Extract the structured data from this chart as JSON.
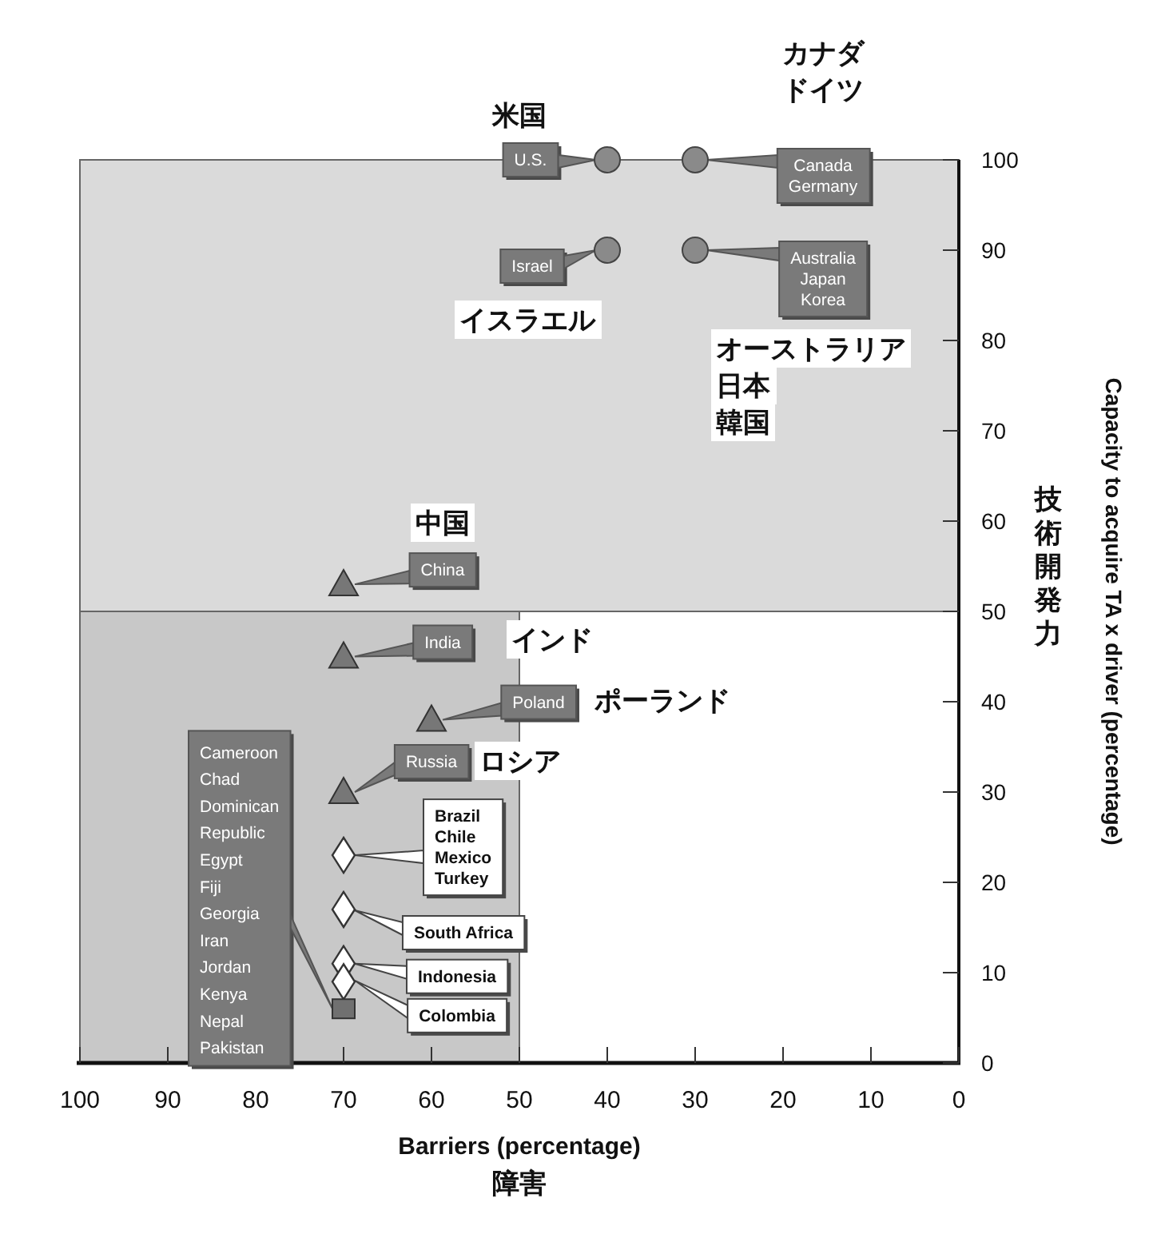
{
  "chart_data": {
    "type": "scatter",
    "xlabel": "Barriers (percentage)\n障害",
    "ylabel": "Capacity to acquire TA x driver (percentage)",
    "xlim": [
      100,
      0
    ],
    "xticks": [
      100,
      90,
      80,
      70,
      60,
      50,
      40,
      30,
      20,
      10,
      0
    ],
    "ylim": [
      0,
      100
    ],
    "yticks": [
      0,
      10,
      20,
      30,
      40,
      50,
      60,
      70,
      80,
      90,
      100
    ],
    "grid": false,
    "bands": [
      {
        "axis": "x",
        "from": 100,
        "to": 50,
        "color": "#c8c8c8"
      },
      {
        "axis": "y",
        "from": 50,
        "to": 100,
        "color": "#dadada"
      }
    ],
    "series": [
      {
        "marker": "circle",
        "color": "#8a8a8a",
        "x": [
          40,
          30,
          40,
          30
        ],
        "values": [
          100,
          100,
          90,
          90
        ]
      },
      {
        "marker": "triangle",
        "color": "#777777",
        "x": [
          70,
          70,
          60,
          70
        ],
        "values": [
          53,
          45,
          38,
          30
        ]
      },
      {
        "marker": "diamond",
        "color": "#ffffff",
        "x": [
          70,
          70,
          70,
          70
        ],
        "values": [
          23,
          17,
          11,
          9
        ]
      },
      {
        "marker": "square",
        "color": "#707070",
        "x": [
          70
        ],
        "values": [
          6
        ]
      }
    ],
    "annotations": [
      {
        "text": "U.S.",
        "x": 40,
        "y": 100
      },
      "米国",
      {
        "text": "Canada\nGermany",
        "x": 30,
        "y": 100
      },
      "カナダ",
      "ドイツ",
      "Israel",
      "イスラエル",
      {
        "text": "Australia\nJapan\nKorea",
        "x": 30,
        "y": 90
      },
      "オーストラリア",
      "日本",
      "韓国",
      {
        "text": "China",
        "x": 70,
        "y": 53
      },
      "中国",
      {
        "text": "India",
        "x": 70,
        "y": 45
      },
      "インド",
      {
        "text": "Poland",
        "x": 60,
        "y": 38
      },
      "ポーランド",
      "Russia",
      "ロシア",
      {
        "text": "Brazil\nChile\nMexico\nTurkey",
        "x": 70,
        "y": 23
      },
      "South Africa",
      {
        "text": "Indonesia",
        "x": 70,
        "y": 11
      },
      "Colombia",
      "Cameroon\nChad\nDominican\nRepublic\nEgypt\nFiji\nGeorgia\nIran\nJordan\nKenya\nNepal\nPakistan",
      "技術開発力"
    ]
  }
}
